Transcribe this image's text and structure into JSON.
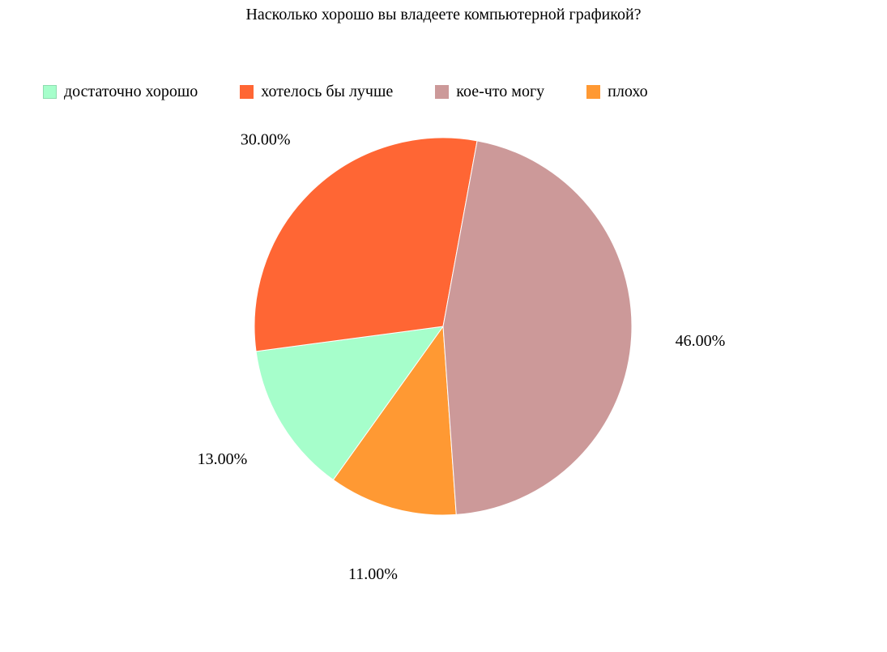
{
  "chart_data": {
    "type": "pie",
    "title": "Насколько хорошо вы владеете компьютерной графикой?",
    "legend_position": "top",
    "categories": [
      "достаточно хорошо",
      "хотелось бы лучше",
      "кое-что могу",
      "плохо"
    ],
    "values": [
      13,
      30,
      46,
      11
    ],
    "labels": [
      "13.00%",
      "30.00%",
      "46.00%",
      "11.00%"
    ],
    "colors": [
      "#a6fecb",
      "#ff6634",
      "#cc9999",
      "#ff9933"
    ]
  }
}
